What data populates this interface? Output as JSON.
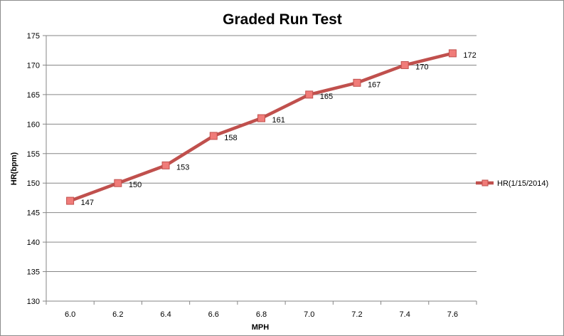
{
  "chart_data": {
    "type": "line",
    "title": "Graded Run Test",
    "xlabel": "MPH",
    "ylabel": "HR(bpm)",
    "x": [
      "6.0",
      "6.2",
      "6.4",
      "6.6",
      "6.8",
      "7.0",
      "7.2",
      "7.4",
      "7.6"
    ],
    "series": [
      {
        "name": "HR(1/15/2014)",
        "values": [
          147,
          150,
          153,
          158,
          161,
          165,
          167,
          170,
          172
        ],
        "color": "#c0504d"
      }
    ],
    "ylim": [
      130,
      175
    ],
    "yticks": [
      "130",
      "135",
      "140",
      "145",
      "150",
      "155",
      "160",
      "165",
      "170",
      "175"
    ],
    "grid": true,
    "legend": "right",
    "data_labels": true
  }
}
